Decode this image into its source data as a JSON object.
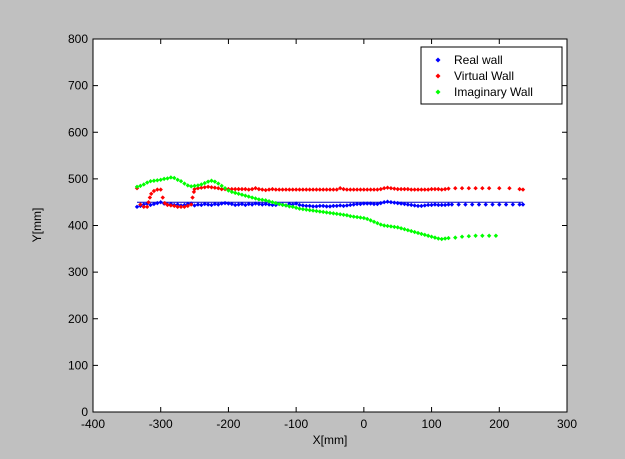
{
  "chart_data": {
    "type": "scatter",
    "xlabel": "X[mm]",
    "ylabel": "Y[mm]",
    "xlim": [
      -400,
      300
    ],
    "ylim": [
      0,
      800
    ],
    "xticks": [
      "-400",
      "-300",
      "-200",
      "-100",
      "0",
      "100",
      "200",
      "300"
    ],
    "yticks": [
      "0",
      "100",
      "200",
      "300",
      "400",
      "500",
      "600",
      "700",
      "800"
    ],
    "grid": false,
    "legend_position": "top-right",
    "reference_line": {
      "x": [
        -335,
        235
      ],
      "y": [
        450,
        450
      ],
      "color": "#0000c8"
    },
    "series": [
      {
        "name": "Real wall",
        "color": "#0000ff",
        "points": [
          [
            -335,
            440
          ],
          [
            -330,
            442
          ],
          [
            -325,
            445
          ],
          [
            -320,
            447
          ],
          [
            -315,
            444
          ],
          [
            -310,
            446
          ],
          [
            -305,
            448
          ],
          [
            -300,
            450
          ],
          [
            -295,
            447
          ],
          [
            -290,
            445
          ],
          [
            -285,
            446
          ],
          [
            -280,
            444
          ],
          [
            -275,
            445
          ],
          [
            -270,
            443
          ],
          [
            -265,
            444
          ],
          [
            -260,
            446
          ],
          [
            -255,
            447
          ],
          [
            -250,
            443
          ],
          [
            -245,
            445
          ],
          [
            -240,
            444
          ],
          [
            -235,
            446
          ],
          [
            -230,
            445
          ],
          [
            -225,
            444
          ],
          [
            -220,
            446
          ],
          [
            -215,
            445
          ],
          [
            -210,
            447
          ],
          [
            -205,
            448
          ],
          [
            -200,
            447
          ],
          [
            -195,
            446
          ],
          [
            -190,
            444
          ],
          [
            -185,
            445
          ],
          [
            -180,
            446
          ],
          [
            -175,
            444
          ],
          [
            -170,
            446
          ],
          [
            -165,
            445
          ],
          [
            -160,
            447
          ],
          [
            -155,
            446
          ],
          [
            -150,
            445
          ],
          [
            -145,
            446
          ],
          [
            -140,
            445
          ],
          [
            -135,
            444
          ],
          [
            -130,
            444
          ],
          [
            -125,
            446
          ],
          [
            -120,
            445
          ],
          [
            -115,
            443
          ],
          [
            -110,
            446
          ],
          [
            -105,
            445
          ],
          [
            -100,
            447
          ],
          [
            -95,
            444
          ],
          [
            -90,
            443
          ],
          [
            -85,
            442
          ],
          [
            -80,
            442
          ],
          [
            -75,
            441
          ],
          [
            -70,
            441
          ],
          [
            -65,
            442
          ],
          [
            -60,
            442
          ],
          [
            -55,
            441
          ],
          [
            -50,
            441
          ],
          [
            -45,
            442
          ],
          [
            -40,
            442
          ],
          [
            -35,
            443
          ],
          [
            -30,
            442
          ],
          [
            -25,
            443
          ],
          [
            -20,
            444
          ],
          [
            -15,
            445
          ],
          [
            -10,
            446
          ],
          [
            -5,
            446
          ],
          [
            0,
            447
          ],
          [
            5,
            447
          ],
          [
            10,
            447
          ],
          [
            15,
            446
          ],
          [
            20,
            446
          ],
          [
            25,
            448
          ],
          [
            30,
            450
          ],
          [
            35,
            451
          ],
          [
            40,
            450
          ],
          [
            45,
            449
          ],
          [
            50,
            448
          ],
          [
            55,
            447
          ],
          [
            60,
            446
          ],
          [
            65,
            445
          ],
          [
            70,
            444
          ],
          [
            75,
            443
          ],
          [
            80,
            442
          ],
          [
            85,
            442
          ],
          [
            90,
            443
          ],
          [
            95,
            444
          ],
          [
            100,
            444
          ],
          [
            105,
            445
          ],
          [
            110,
            444
          ],
          [
            115,
            444
          ],
          [
            120,
            444
          ],
          [
            125,
            445
          ],
          [
            130,
            445
          ],
          [
            140,
            445
          ],
          [
            150,
            445
          ],
          [
            160,
            445
          ],
          [
            170,
            445
          ],
          [
            180,
            445
          ],
          [
            190,
            445
          ],
          [
            200,
            445
          ],
          [
            210,
            445
          ],
          [
            220,
            445
          ],
          [
            230,
            445
          ],
          [
            235,
            445
          ]
        ]
      },
      {
        "name": "Virtual Wall",
        "color": "#ff0000",
        "points": [
          [
            -335,
            480
          ],
          [
            -330,
            445
          ],
          [
            -325,
            440
          ],
          [
            -320,
            440
          ],
          [
            -318,
            450
          ],
          [
            -316,
            460
          ],
          [
            -314,
            468
          ],
          [
            -310,
            474
          ],
          [
            -305,
            477
          ],
          [
            -300,
            477
          ],
          [
            -297,
            460
          ],
          [
            -294,
            448
          ],
          [
            -290,
            444
          ],
          [
            -285,
            443
          ],
          [
            -280,
            442
          ],
          [
            -275,
            440
          ],
          [
            -270,
            440
          ],
          [
            -265,
            440
          ],
          [
            -260,
            442
          ],
          [
            -255,
            445
          ],
          [
            -253,
            460
          ],
          [
            -251,
            472
          ],
          [
            -250,
            478
          ],
          [
            -245,
            480
          ],
          [
            -240,
            481
          ],
          [
            -235,
            482
          ],
          [
            -230,
            483
          ],
          [
            -225,
            482
          ],
          [
            -220,
            481
          ],
          [
            -215,
            480
          ],
          [
            -210,
            478
          ],
          [
            -205,
            478
          ],
          [
            -200,
            478
          ],
          [
            -195,
            478
          ],
          [
            -190,
            478
          ],
          [
            -185,
            478
          ],
          [
            -180,
            478
          ],
          [
            -175,
            478
          ],
          [
            -170,
            477
          ],
          [
            -165,
            478
          ],
          [
            -160,
            480
          ],
          [
            -155,
            478
          ],
          [
            -150,
            477
          ],
          [
            -145,
            476
          ],
          [
            -140,
            477
          ],
          [
            -135,
            478
          ],
          [
            -130,
            477
          ],
          [
            -125,
            477
          ],
          [
            -120,
            477
          ],
          [
            -115,
            477
          ],
          [
            -110,
            477
          ],
          [
            -105,
            477
          ],
          [
            -100,
            477
          ],
          [
            -95,
            477
          ],
          [
            -90,
            477
          ],
          [
            -85,
            477
          ],
          [
            -80,
            477
          ],
          [
            -75,
            477
          ],
          [
            -70,
            477
          ],
          [
            -65,
            477
          ],
          [
            -60,
            477
          ],
          [
            -55,
            477
          ],
          [
            -50,
            477
          ],
          [
            -45,
            477
          ],
          [
            -40,
            477
          ],
          [
            -35,
            480
          ],
          [
            -30,
            478
          ],
          [
            -25,
            477
          ],
          [
            -20,
            477
          ],
          [
            -15,
            477
          ],
          [
            -10,
            477
          ],
          [
            -5,
            477
          ],
          [
            0,
            477
          ],
          [
            5,
            477
          ],
          [
            10,
            477
          ],
          [
            15,
            477
          ],
          [
            20,
            477
          ],
          [
            25,
            478
          ],
          [
            30,
            480
          ],
          [
            35,
            481
          ],
          [
            40,
            480
          ],
          [
            45,
            479
          ],
          [
            50,
            478
          ],
          [
            55,
            478
          ],
          [
            60,
            478
          ],
          [
            65,
            478
          ],
          [
            70,
            477
          ],
          [
            75,
            477
          ],
          [
            80,
            477
          ],
          [
            85,
            477
          ],
          [
            90,
            477
          ],
          [
            95,
            477
          ],
          [
            100,
            478
          ],
          [
            105,
            478
          ],
          [
            110,
            478
          ],
          [
            115,
            477
          ],
          [
            120,
            478
          ],
          [
            125,
            479
          ],
          [
            135,
            480
          ],
          [
            145,
            480
          ],
          [
            155,
            480
          ],
          [
            165,
            480
          ],
          [
            175,
            480
          ],
          [
            185,
            480
          ],
          [
            200,
            480
          ],
          [
            215,
            480
          ],
          [
            230,
            478
          ],
          [
            235,
            477
          ]
        ]
      },
      {
        "name": "Imaginary Wall",
        "color": "#00ff00",
        "points": [
          [
            -335,
            483
          ],
          [
            -330,
            485
          ],
          [
            -325,
            488
          ],
          [
            -320,
            492
          ],
          [
            -315,
            495
          ],
          [
            -310,
            496
          ],
          [
            -305,
            497
          ],
          [
            -300,
            498
          ],
          [
            -295,
            500
          ],
          [
            -290,
            501
          ],
          [
            -285,
            503
          ],
          [
            -280,
            502
          ],
          [
            -275,
            498
          ],
          [
            -270,
            495
          ],
          [
            -265,
            490
          ],
          [
            -260,
            486
          ],
          [
            -255,
            484
          ],
          [
            -250,
            485
          ],
          [
            -245,
            486
          ],
          [
            -240,
            488
          ],
          [
            -235,
            491
          ],
          [
            -230,
            494
          ],
          [
            -225,
            496
          ],
          [
            -220,
            494
          ],
          [
            -215,
            490
          ],
          [
            -210,
            485
          ],
          [
            -205,
            480
          ],
          [
            -200,
            475
          ],
          [
            -195,
            472
          ],
          [
            -190,
            470
          ],
          [
            -185,
            468
          ],
          [
            -180,
            466
          ],
          [
            -175,
            464
          ],
          [
            -170,
            462
          ],
          [
            -165,
            460
          ],
          [
            -160,
            458
          ],
          [
            -155,
            456
          ],
          [
            -150,
            455
          ],
          [
            -145,
            454
          ],
          [
            -140,
            452
          ],
          [
            -135,
            450
          ],
          [
            -130,
            448
          ],
          [
            -125,
            446
          ],
          [
            -120,
            444
          ],
          [
            -115,
            443
          ],
          [
            -110,
            441
          ],
          [
            -105,
            440
          ],
          [
            -100,
            438
          ],
          [
            -95,
            436
          ],
          [
            -90,
            435
          ],
          [
            -85,
            434
          ],
          [
            -80,
            433
          ],
          [
            -75,
            432
          ],
          [
            -70,
            431
          ],
          [
            -65,
            430
          ],
          [
            -60,
            429
          ],
          [
            -55,
            428
          ],
          [
            -50,
            427
          ],
          [
            -45,
            426
          ],
          [
            -40,
            425
          ],
          [
            -35,
            424
          ],
          [
            -30,
            423
          ],
          [
            -25,
            422
          ],
          [
            -20,
            420
          ],
          [
            -15,
            419
          ],
          [
            -10,
            418
          ],
          [
            -5,
            417
          ],
          [
            0,
            416
          ],
          [
            5,
            414
          ],
          [
            10,
            411
          ],
          [
            15,
            408
          ],
          [
            20,
            405
          ],
          [
            25,
            402
          ],
          [
            30,
            400
          ],
          [
            35,
            399
          ],
          [
            40,
            398
          ],
          [
            45,
            397
          ],
          [
            50,
            396
          ],
          [
            55,
            394
          ],
          [
            60,
            392
          ],
          [
            65,
            390
          ],
          [
            70,
            388
          ],
          [
            75,
            386
          ],
          [
            80,
            384
          ],
          [
            85,
            382
          ],
          [
            90,
            380
          ],
          [
            95,
            378
          ],
          [
            100,
            376
          ],
          [
            105,
            374
          ],
          [
            110,
            372
          ],
          [
            115,
            371
          ],
          [
            120,
            372
          ],
          [
            125,
            373
          ],
          [
            135,
            374
          ],
          [
            145,
            376
          ],
          [
            155,
            377
          ],
          [
            165,
            378
          ],
          [
            175,
            378
          ],
          [
            185,
            378
          ],
          [
            195,
            378
          ]
        ]
      }
    ]
  }
}
